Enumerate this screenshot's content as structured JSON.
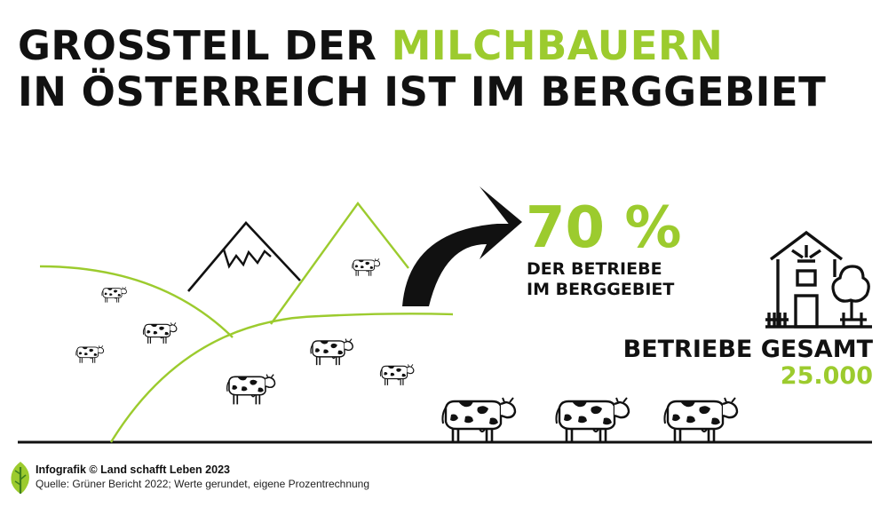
{
  "headline": {
    "line1_part1": "GROSSTEIL DER ",
    "line1_accent": "MILCHBAUERN",
    "line2": "IN ÖSTERREICH IST IM BERGGEBIET"
  },
  "stat": {
    "value": "70 %",
    "label_line1": "DER BETRIEBE",
    "label_line2": "IM BERGGEBIET"
  },
  "total": {
    "label": "BETRIEBE GESAMT",
    "value": "25.000"
  },
  "footer": {
    "credit": "Infografik © Land schafft Leben 2023",
    "source": "Quelle: Grüner Bericht 2022; Werte gerundet, eigene Prozentrechnung"
  },
  "colors": {
    "accent": "#9ccb2e",
    "text": "#111111",
    "background": "#ffffff"
  },
  "icons": [
    "mountain-icon",
    "cow-icon",
    "arrow-icon",
    "farmhouse-icon",
    "tree-icon",
    "leaf-logo-icon"
  ]
}
